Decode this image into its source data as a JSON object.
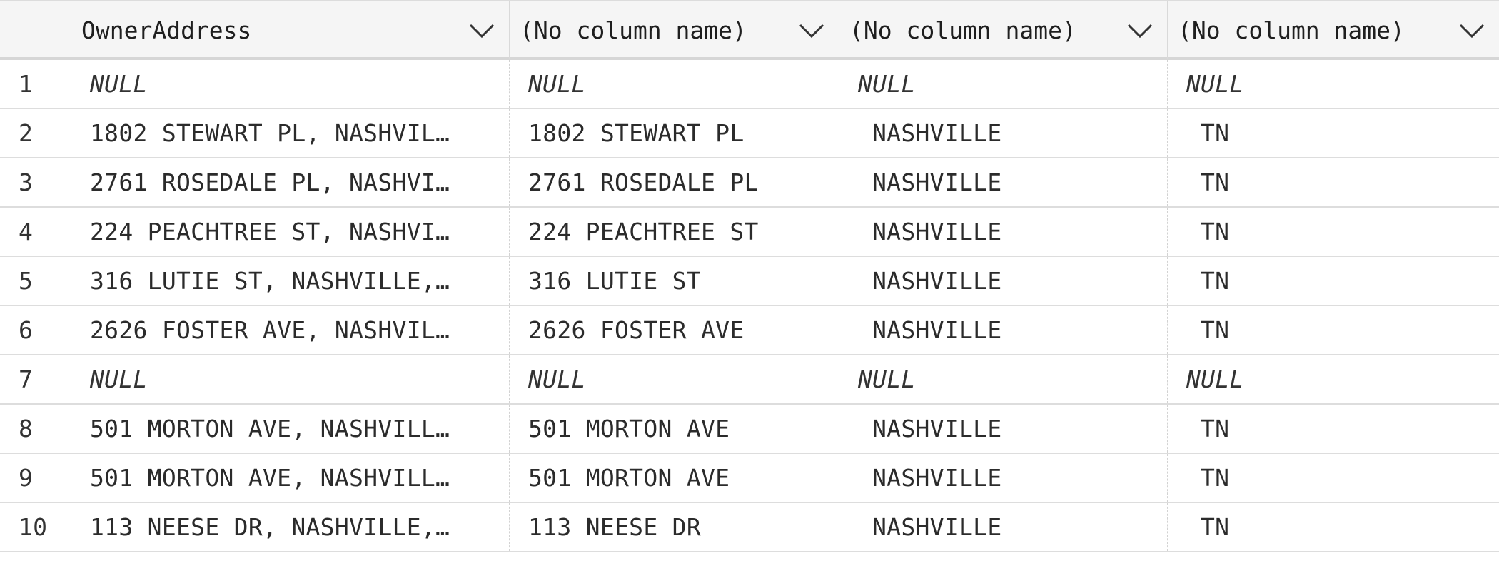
{
  "grid": {
    "columns": [
      {
        "label": ""
      },
      {
        "label": "OwnerAddress"
      },
      {
        "label": "(No column name)"
      },
      {
        "label": "(No column name)"
      },
      {
        "label": "(No column name)"
      }
    ],
    "rows": [
      {
        "num": "1",
        "addr": "NULL",
        "street": "NULL",
        "city": "NULL",
        "state": "NULL"
      },
      {
        "num": "2",
        "addr": "1802  STEWART PL, NASHVIL…",
        "street": "1802  STEWART PL",
        "city": "NASHVILLE",
        "state": "TN"
      },
      {
        "num": "3",
        "addr": "2761  ROSEDALE PL, NASHVI…",
        "street": "2761  ROSEDALE PL",
        "city": "NASHVILLE",
        "state": "TN"
      },
      {
        "num": "4",
        "addr": "224  PEACHTREE ST, NASHVI…",
        "street": "224  PEACHTREE ST",
        "city": "NASHVILLE",
        "state": "TN"
      },
      {
        "num": "5",
        "addr": "316  LUTIE ST, NASHVILLE,…",
        "street": "316  LUTIE ST",
        "city": "NASHVILLE",
        "state": "TN"
      },
      {
        "num": "6",
        "addr": "2626  FOSTER AVE, NASHVIL…",
        "street": "2626  FOSTER AVE",
        "city": "NASHVILLE",
        "state": "TN"
      },
      {
        "num": "7",
        "addr": "NULL",
        "street": "NULL",
        "city": "NULL",
        "state": "NULL"
      },
      {
        "num": "8",
        "addr": "501  MORTON AVE, NASHVILL…",
        "street": "501  MORTON AVE",
        "city": "NASHVILLE",
        "state": "TN"
      },
      {
        "num": "9",
        "addr": "501  MORTON AVE, NASHVILL…",
        "street": "501  MORTON AVE",
        "city": "NASHVILLE",
        "state": "TN"
      },
      {
        "num": "10",
        "addr": "113  NEESE DR, NASHVILLE,…",
        "street": "113  NEESE DR",
        "city": "NASHVILLE",
        "state": "TN"
      }
    ],
    "chevron_icon": "chevron-down-icon"
  }
}
